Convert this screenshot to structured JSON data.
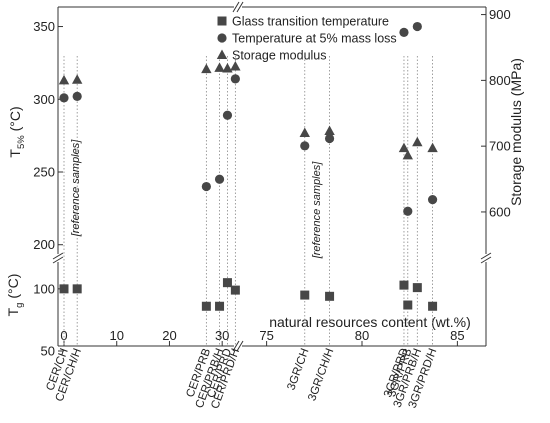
{
  "chart_data": {
    "type": "scatter",
    "title": "",
    "xlabel": "natural resources content (wt.%)",
    "x_axis_segments": [
      {
        "range": [
          0,
          33
        ],
        "ticks": [
          0,
          10,
          20,
          30
        ]
      },
      {
        "range": [
          73.5,
          86.5
        ],
        "ticks": [
          75,
          80,
          85
        ]
      }
    ],
    "y_left_top": {
      "label_main": "T",
      "label_sub": "5%",
      "label_unit": " (°C)",
      "range": [
        195,
        360
      ],
      "ticks": [
        200,
        250,
        300,
        350
      ]
    },
    "y_left_bottom": {
      "label_main": "T",
      "label_sub": "g",
      "label_unit": " (°C)",
      "range": [
        50,
        120
      ],
      "ticks": [
        50,
        100
      ]
    },
    "y_right": {
      "label": "Storage modulus (MPa)",
      "range": [
        530,
        910
      ],
      "ticks": [
        600,
        700,
        800,
        900
      ]
    },
    "legend": {
      "position": "top-right",
      "entries": [
        {
          "name": "Glass transition temperature",
          "marker": "square"
        },
        {
          "name": "Temperature at 5% mass loss",
          "marker": "circle"
        },
        {
          "name": "Storage modulus",
          "marker": "triangle"
        }
      ]
    },
    "annotations": [
      "[reference samples]",
      "[reference samples]"
    ],
    "series": [
      {
        "name": "Glass transition temperature",
        "marker": "square",
        "axis": "y_left_bottom",
        "points": [
          {
            "x": 0,
            "y": 100
          },
          {
            "x": 2.5,
            "y": 100
          },
          {
            "x": 27,
            "y": 86
          },
          {
            "x": 29.5,
            "y": 86
          },
          {
            "x": 31,
            "y": 105
          },
          {
            "x": 32.5,
            "y": 99
          },
          {
            "x": 77,
            "y": 95
          },
          {
            "x": 78.3,
            "y": 94
          },
          {
            "x": 82.2,
            "y": 103
          },
          {
            "x": 82.4,
            "y": 87
          },
          {
            "x": 82.9,
            "y": 101
          },
          {
            "x": 83.7,
            "y": 86
          }
        ]
      },
      {
        "name": "Temperature at 5% mass loss",
        "marker": "circle",
        "axis": "y_left_top",
        "points": [
          {
            "x": 0,
            "y": 301
          },
          {
            "x": 2.5,
            "y": 302
          },
          {
            "x": 27,
            "y": 240
          },
          {
            "x": 29.5,
            "y": 245
          },
          {
            "x": 31,
            "y": 289
          },
          {
            "x": 32.5,
            "y": 314
          },
          {
            "x": 77,
            "y": 268
          },
          {
            "x": 78.3,
            "y": 273
          },
          {
            "x": 82.2,
            "y": 346
          },
          {
            "x": 82.4,
            "y": 223
          },
          {
            "x": 82.9,
            "y": 350
          },
          {
            "x": 83.7,
            "y": 231
          }
        ]
      },
      {
        "name": "Storage modulus",
        "marker": "triangle",
        "axis": "y_right",
        "points": [
          {
            "x": 0,
            "y": 800
          },
          {
            "x": 2.5,
            "y": 801
          },
          {
            "x": 27,
            "y": 817
          },
          {
            "x": 29.5,
            "y": 819
          },
          {
            "x": 31,
            "y": 818
          },
          {
            "x": 32.5,
            "y": 821
          },
          {
            "x": 77,
            "y": 720
          },
          {
            "x": 78.3,
            "y": 723
          },
          {
            "x": 82.2,
            "y": 697
          },
          {
            "x": 82.4,
            "y": 686
          },
          {
            "x": 82.9,
            "y": 706
          },
          {
            "x": 83.7,
            "y": 697
          }
        ]
      }
    ],
    "sample_labels": [
      {
        "x": 0,
        "text": "CER/CH"
      },
      {
        "x": 2.5,
        "text": "CER/CH/H"
      },
      {
        "x": 27,
        "text": "CER/PRB"
      },
      {
        "x": 29.5,
        "text": "CER/PRB/H"
      },
      {
        "x": 31,
        "text": "CER/PRD"
      },
      {
        "x": 32.5,
        "text": "CER/PRD/H"
      },
      {
        "x": 77,
        "text": "3GR/CH"
      },
      {
        "x": 78.3,
        "text": "3GR/CH/H"
      },
      {
        "x": 82.2,
        "text": "3GR/PRD"
      },
      {
        "x": 82.4,
        "text": "3GR/PRB"
      },
      {
        "x": 82.9,
        "text": "3GR/PRB/H"
      },
      {
        "x": 83.7,
        "text": "3GR/PRD/H"
      }
    ]
  }
}
